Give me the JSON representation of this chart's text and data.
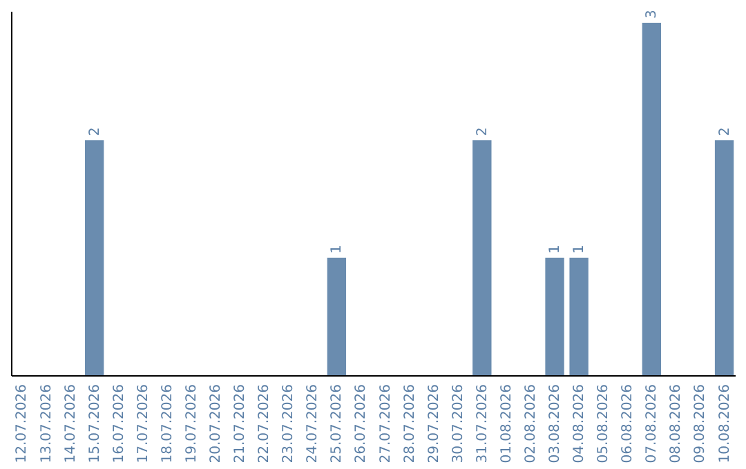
{
  "chart_data": {
    "type": "bar",
    "categories": [
      "12.07.2026",
      "13.07.2026",
      "14.07.2026",
      "15.07.2026",
      "16.07.2026",
      "17.07.2026",
      "18.07.2026",
      "19.07.2026",
      "20.07.2026",
      "21.07.2026",
      "22.07.2026",
      "23.07.2026",
      "24.07.2026",
      "25.07.2026",
      "26.07.2026",
      "27.07.2026",
      "28.07.2026",
      "29.07.2026",
      "30.07.2026",
      "31.07.2026",
      "01.08.2026",
      "02.08.2026",
      "03.08.2026",
      "04.08.2026",
      "05.08.2026",
      "06.08.2026",
      "07.08.2026",
      "08.08.2026",
      "09.08.2026",
      "10.08.2026"
    ],
    "values": [
      0,
      0,
      0,
      2,
      0,
      0,
      0,
      0,
      0,
      0,
      0,
      0,
      0,
      1,
      0,
      0,
      0,
      0,
      0,
      2,
      0,
      0,
      1,
      1,
      0,
      0,
      3,
      0,
      0,
      2
    ],
    "color": "#6a8caf",
    "ylim": [
      0,
      3.1
    ],
    "value_labels": [
      null,
      null,
      null,
      "2",
      null,
      null,
      null,
      null,
      null,
      null,
      null,
      null,
      null,
      "1",
      null,
      null,
      null,
      null,
      null,
      "2",
      null,
      null,
      "1",
      "1",
      null,
      null,
      "3",
      null,
      null,
      "2"
    ],
    "tick_labels": "x"
  }
}
